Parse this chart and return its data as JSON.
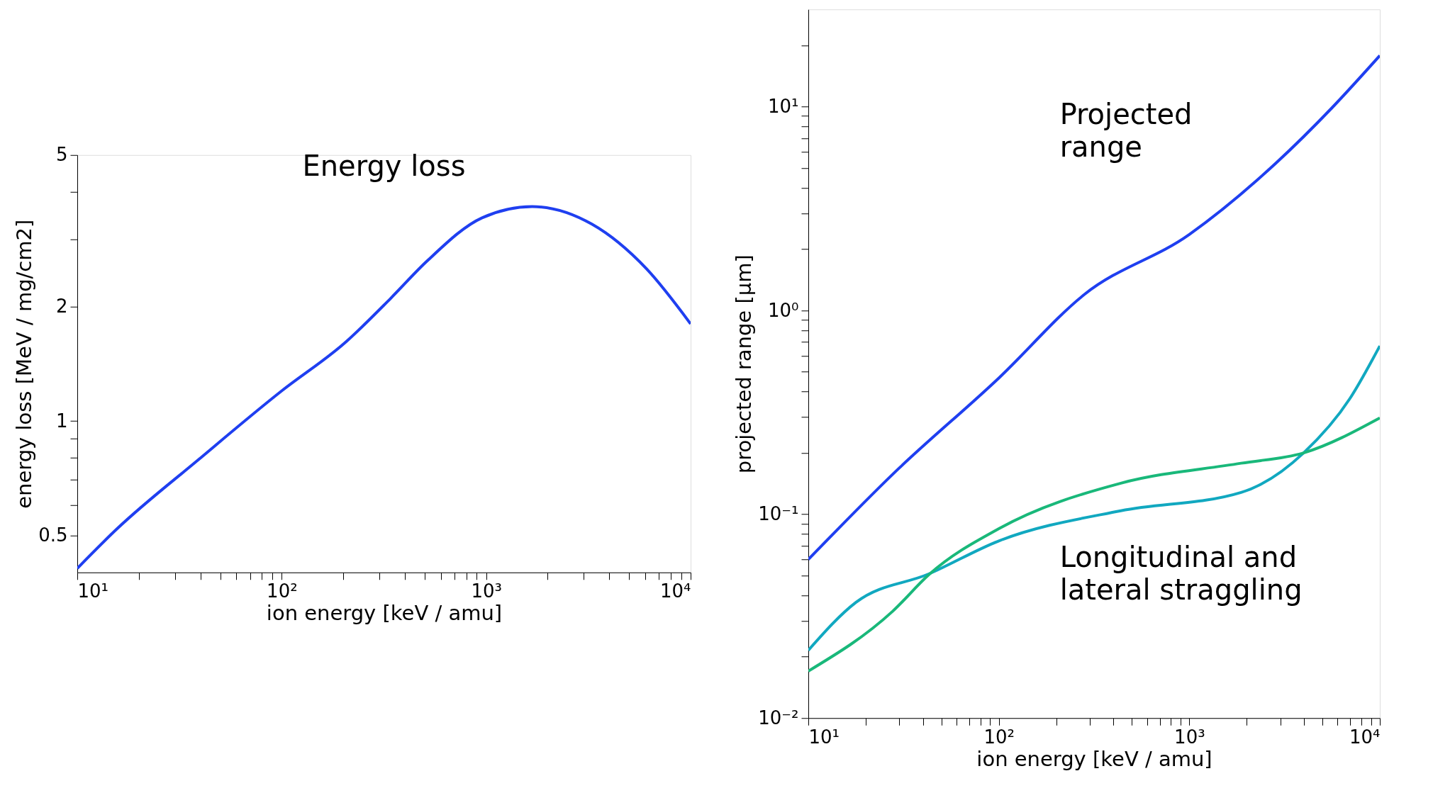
{
  "chart_data": [
    {
      "type": "line",
      "title": "Energy loss",
      "xlabel": "ion energy [keV / amu]",
      "ylabel": "energy loss [MeV / mg/cm2]",
      "log": "xy",
      "xlim": [
        10,
        10000
      ],
      "ylim": [
        0.4,
        5
      ],
      "xticks": [
        {
          "value": 10,
          "label": "10¹"
        },
        {
          "value": 20,
          "label": null
        },
        {
          "value": 30,
          "label": null
        },
        {
          "value": 40,
          "label": null
        },
        {
          "value": 50,
          "label": null
        },
        {
          "value": 60,
          "label": null
        },
        {
          "value": 70,
          "label": null
        },
        {
          "value": 80,
          "label": null
        },
        {
          "value": 90,
          "label": null
        },
        {
          "value": 100,
          "label": "10²"
        },
        {
          "value": 200,
          "label": null
        },
        {
          "value": 300,
          "label": null
        },
        {
          "value": 400,
          "label": null
        },
        {
          "value": 500,
          "label": null
        },
        {
          "value": 600,
          "label": null
        },
        {
          "value": 700,
          "label": null
        },
        {
          "value": 800,
          "label": null
        },
        {
          "value": 900,
          "label": null
        },
        {
          "value": 1000,
          "label": "10³"
        },
        {
          "value": 2000,
          "label": null
        },
        {
          "value": 3000,
          "label": null
        },
        {
          "value": 4000,
          "label": null
        },
        {
          "value": 5000,
          "label": null
        },
        {
          "value": 6000,
          "label": null
        },
        {
          "value": 7000,
          "label": null
        },
        {
          "value": 8000,
          "label": null
        },
        {
          "value": 9000,
          "label": null
        },
        {
          "value": 10000,
          "label": "10⁴"
        }
      ],
      "yticks": [
        0.5,
        {
          "value": 0.6,
          "label": null
        },
        {
          "value": 0.7,
          "label": null
        },
        {
          "value": 0.8,
          "label": null
        },
        {
          "value": 0.9,
          "label": null
        },
        1,
        2,
        {
          "value": 3,
          "label": null
        },
        {
          "value": 4,
          "label": null
        },
        5
      ],
      "series": [
        {
          "color": "#1f3ff0",
          "x": [
            10,
            15.6,
            39,
            100,
            205,
            341,
            513,
            955,
            1680,
            3290,
            6090,
            10000
          ],
          "values": [
            0.41,
            0.52,
            0.79,
            1.2,
            1.61,
            2.1,
            2.63,
            3.42,
            3.66,
            3.29,
            2.51,
            1.8
          ]
        }
      ]
    },
    {
      "type": "line",
      "xlabel": "ion energy [keV / amu]",
      "ylabel": "projected range [μm]",
      "log": "xy",
      "xlim": [
        10,
        10000
      ],
      "ylim": [
        0.01,
        30
      ],
      "xticks": [
        {
          "value": 10,
          "label": "10¹"
        },
        {
          "value": 20,
          "label": null
        },
        {
          "value": 30,
          "label": null
        },
        {
          "value": 40,
          "label": null
        },
        {
          "value": 50,
          "label": null
        },
        {
          "value": 60,
          "label": null
        },
        {
          "value": 70,
          "label": null
        },
        {
          "value": 80,
          "label": null
        },
        {
          "value": 90,
          "label": null
        },
        {
          "value": 100,
          "label": "10²"
        },
        {
          "value": 200,
          "label": null
        },
        {
          "value": 300,
          "label": null
        },
        {
          "value": 400,
          "label": null
        },
        {
          "value": 500,
          "label": null
        },
        {
          "value": 600,
          "label": null
        },
        {
          "value": 700,
          "label": null
        },
        {
          "value": 800,
          "label": null
        },
        {
          "value": 900,
          "label": null
        },
        {
          "value": 1000,
          "label": "10³"
        },
        {
          "value": 2000,
          "label": null
        },
        {
          "value": 3000,
          "label": null
        },
        {
          "value": 4000,
          "label": null
        },
        {
          "value": 5000,
          "label": null
        },
        {
          "value": 6000,
          "label": null
        },
        {
          "value": 7000,
          "label": null
        },
        {
          "value": 8000,
          "label": null
        },
        {
          "value": 9000,
          "label": null
        },
        {
          "value": 10000,
          "label": "10⁴"
        }
      ],
      "yticks": [
        {
          "value": 0.01,
          "label": "10⁻²"
        },
        {
          "value": 0.02,
          "label": null
        },
        {
          "value": 0.03,
          "label": null
        },
        {
          "value": 0.04,
          "label": null
        },
        {
          "value": 0.05,
          "label": null
        },
        {
          "value": 0.06,
          "label": null
        },
        {
          "value": 0.07,
          "label": null
        },
        {
          "value": 0.08,
          "label": null
        },
        {
          "value": 0.09,
          "label": null
        },
        {
          "value": 0.1,
          "label": "10⁻¹"
        },
        {
          "value": 0.2,
          "label": null
        },
        {
          "value": 0.3,
          "label": null
        },
        {
          "value": 0.4,
          "label": null
        },
        {
          "value": 0.5,
          "label": null
        },
        {
          "value": 0.6,
          "label": null
        },
        {
          "value": 0.7,
          "label": null
        },
        {
          "value": 0.8,
          "label": null
        },
        {
          "value": 0.9,
          "label": null
        },
        {
          "value": 1,
          "label": "10⁰"
        },
        {
          "value": 2,
          "label": null
        },
        {
          "value": 3,
          "label": null
        },
        {
          "value": 4,
          "label": null
        },
        {
          "value": 5,
          "label": null
        },
        {
          "value": 6,
          "label": null
        },
        {
          "value": 7,
          "label": null
        },
        {
          "value": 8,
          "label": null
        },
        {
          "value": 9,
          "label": null
        },
        {
          "value": 10,
          "label": "10¹"
        },
        {
          "value": 20,
          "label": null
        }
      ],
      "annotations": [
        "Projected range",
        "Longitudinal and lateral straggling"
      ],
      "series": [
        {
          "color": "#1f3ff0",
          "x": [
            10,
            27.7,
            100,
            282,
            1000,
            2860,
            5570,
            10000
          ],
          "values": [
            0.06,
            0.157,
            0.466,
            1.2,
            2.36,
            5.3,
            9.8,
            17.8
          ]
        },
        {
          "color": "#11a8c0",
          "x": [
            10,
            17.8,
            43,
            100,
            437,
            1870,
            3980,
            6970,
            10000
          ],
          "values": [
            0.0215,
            0.037,
            0.051,
            0.074,
            0.104,
            0.128,
            0.2,
            0.37,
            0.67
          ]
        },
        {
          "color": "#19b87a",
          "x": [
            10,
            27.7,
            43,
            100,
            437,
            1870,
            3980,
            10000
          ],
          "values": [
            0.017,
            0.0334,
            0.0506,
            0.085,
            0.142,
            0.178,
            0.2,
            0.297
          ]
        }
      ]
    }
  ]
}
